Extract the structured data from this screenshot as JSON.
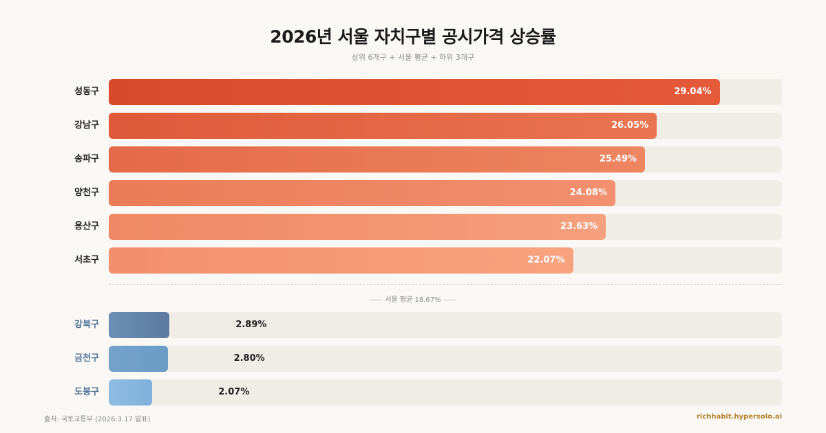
{
  "title": "2026년 서울 자치구별 공시가격 상승률",
  "subtitle": "상위 6개구 + 서울 평균 + 하위 3개구",
  "average_label": "서울 평균 18.67%",
  "source": "출처: 국토교통부 (2026.3.17 발표)",
  "brand": "richhabit.hypersolo.ai",
  "colors": {
    "top_start": [
      "#d94a2b",
      "#e46a45",
      "#ed8259",
      "#f09370"
    ],
    "bottom_colors": [
      "#5b7ca1",
      "#6d9cc6",
      "#85b7de"
    ],
    "track": "#f0ede6",
    "background": "#f9f8f5"
  },
  "chart_data": {
    "type": "bar",
    "orientation": "horizontal",
    "title": "2026년 서울 자치구별 공시가격 상승률",
    "subtitle": "상위 6개구 + 서울 평균 + 하위 3개구",
    "xlim": [
      0,
      32
    ],
    "reference_line": {
      "label": "서울 평균 18.67%",
      "value": 18.67
    },
    "top_groups": [
      {
        "category": "성동구",
        "value": 29.04,
        "value_label": "29.04%"
      },
      {
        "category": "강남구",
        "value": 26.05,
        "value_label": "26.05%"
      },
      {
        "category": "송파구",
        "value": 25.49,
        "value_label": "25.49%"
      },
      {
        "category": "양천구",
        "value": 24.08,
        "value_label": "24.08%"
      },
      {
        "category": "용산구",
        "value": 23.63,
        "value_label": "23.63%"
      },
      {
        "category": "서초구",
        "value": 22.07,
        "value_label": "22.07%"
      }
    ],
    "bottom_groups": [
      {
        "category": "강북구",
        "value": 2.89,
        "value_label": "2.89%"
      },
      {
        "category": "금천구",
        "value": 2.8,
        "value_label": "2.80%"
      },
      {
        "category": "도봉구",
        "value": 2.07,
        "value_label": "2.07%"
      }
    ]
  }
}
